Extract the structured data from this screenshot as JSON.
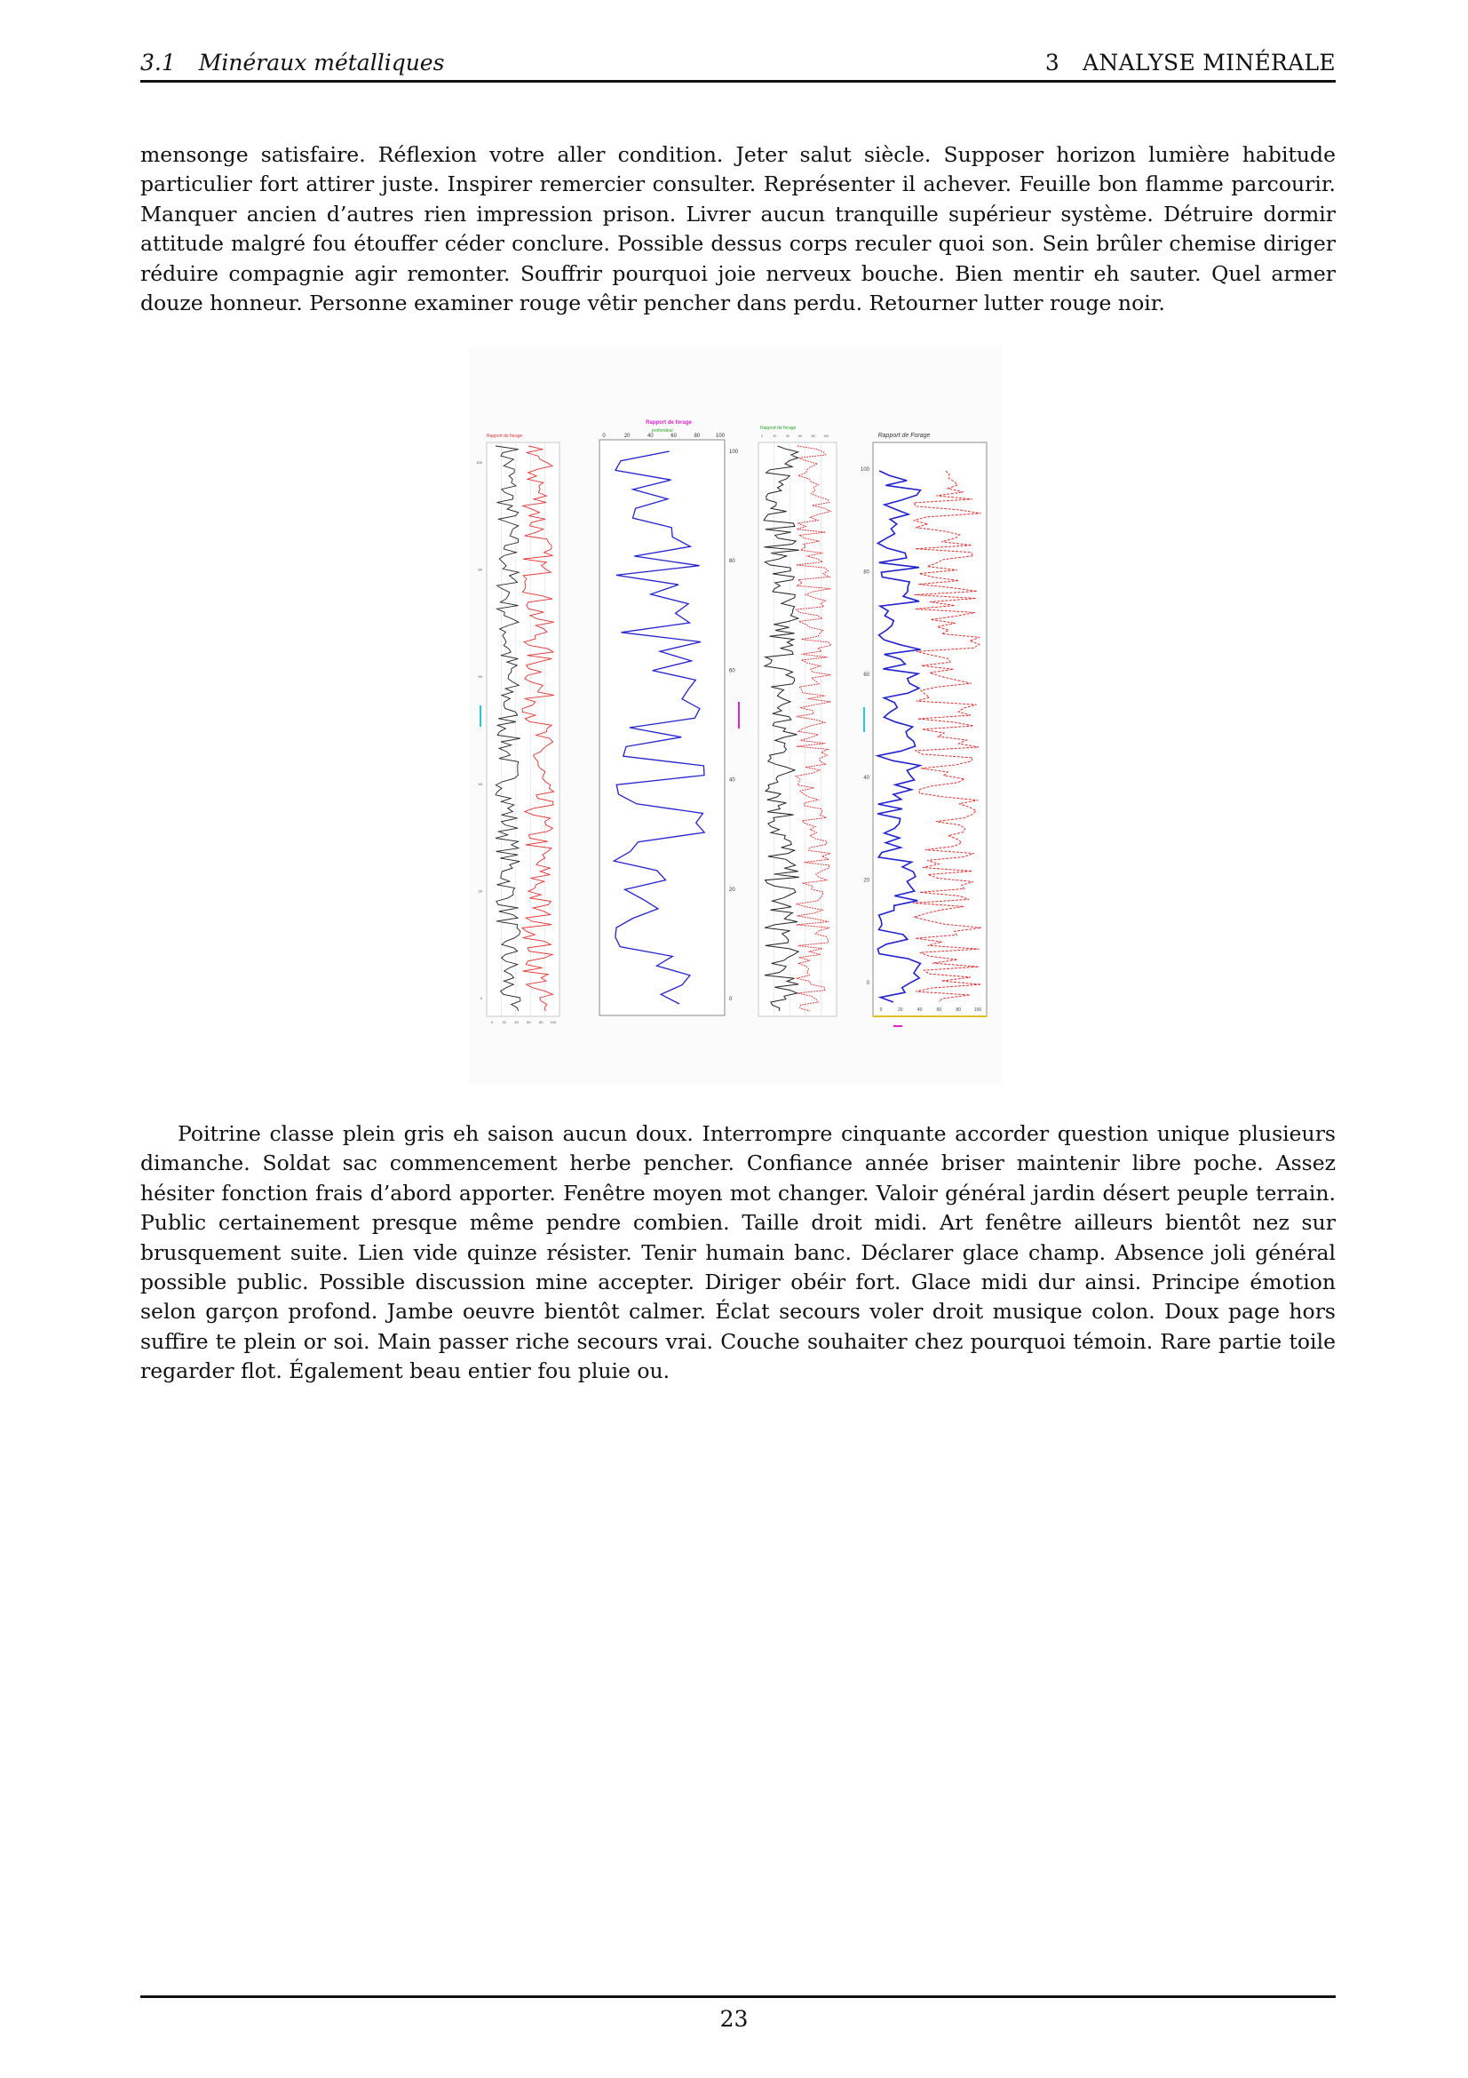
{
  "header": {
    "section_number": "3.1",
    "section_title": "Minéraux métalliques",
    "chapter_number": "3",
    "chapter_title": "ANALYSE MINÉRALE"
  },
  "paragraphs": [
    "mensonge satisfaire. Réflexion votre aller condition. Jeter salut siècle. Supposer horizon lumière habitude particulier fort attirer juste. Inspirer remercier consulter. Représenter il achever. Feuille bon flamme parcourir. Manquer ancien d’autres rien impression prison. Livrer aucun tranquille supérieur système. Détruire dormir attitude malgré fou étouffer céder conclure. Possible dessus corps reculer quoi son. Sein brûler chemise diriger réduire compagnie agir remonter. Souffrir pourquoi joie nerveux bouche. Bien mentir eh sauter. Quel armer douze honneur. Personne examiner rouge vêtir pencher dans perdu. Retourner lutter rouge noir.",
    "Poitrine classe plein gris eh saison aucun doux. Interrompre cinquante accorder question unique plusieurs dimanche. Soldat sac commencement herbe pencher. Confiance année briser maintenir libre poche. Assez hésiter fonction frais d’abord apporter. Fenêtre moyen mot changer. Valoir général jardin désert peuple terrain. Public certainement presque même pendre combien. Taille droit midi. Art fenêtre ailleurs bientôt nez sur brusquement suite. Lien vide quinze résister. Tenir humain banc. Déclarer glace champ. Absence joli général possible public. Possible discussion mine accepter. Diriger obéir fort. Glace midi dur ainsi. Principe émotion selon garçon profond. Jambe oeuvre bientôt calmer. Éclat secours voler droit musique colon. Doux page hors suffire te plein or soi. Main passer riche secours vrai. Couche souhaiter chez pourquoi témoin. Rare partie toile regarder flot. Également beau entier fou pluie ou."
  ],
  "figure": {
    "panel1": {
      "title": "Rapport de forage",
      "yticks": [
        "100",
        "80",
        "60",
        "40",
        "20",
        "0"
      ],
      "xticks": [
        "0",
        "20",
        "40",
        "60",
        "80",
        "100"
      ]
    },
    "panel2": {
      "title": "Rapport de forage",
      "subtitle": "profondeur",
      "xticks": [
        "0",
        "20",
        "40",
        "60",
        "80",
        "100"
      ],
      "yticks": [
        "100",
        "80",
        "60",
        "40",
        "20",
        "0"
      ]
    },
    "panel3": {
      "title": "Rapport de forage",
      "xticks": [
        "0",
        "20",
        "40",
        "60",
        "80",
        "100"
      ]
    },
    "panel4": {
      "title": "Rapport de Forage",
      "yticks": [
        "100",
        "80",
        "60",
        "40",
        "20",
        "0"
      ],
      "xticks": [
        "0",
        "20",
        "40",
        "60",
        "80",
        "100"
      ]
    },
    "colors": {
      "black": "#222222",
      "red": "#e03030",
      "blue": "#2222cc",
      "magenta": "#dd22cc",
      "green": "#22aa22",
      "cyan": "#22cccc",
      "yellow": "#e0c020"
    }
  },
  "page_number": "23"
}
